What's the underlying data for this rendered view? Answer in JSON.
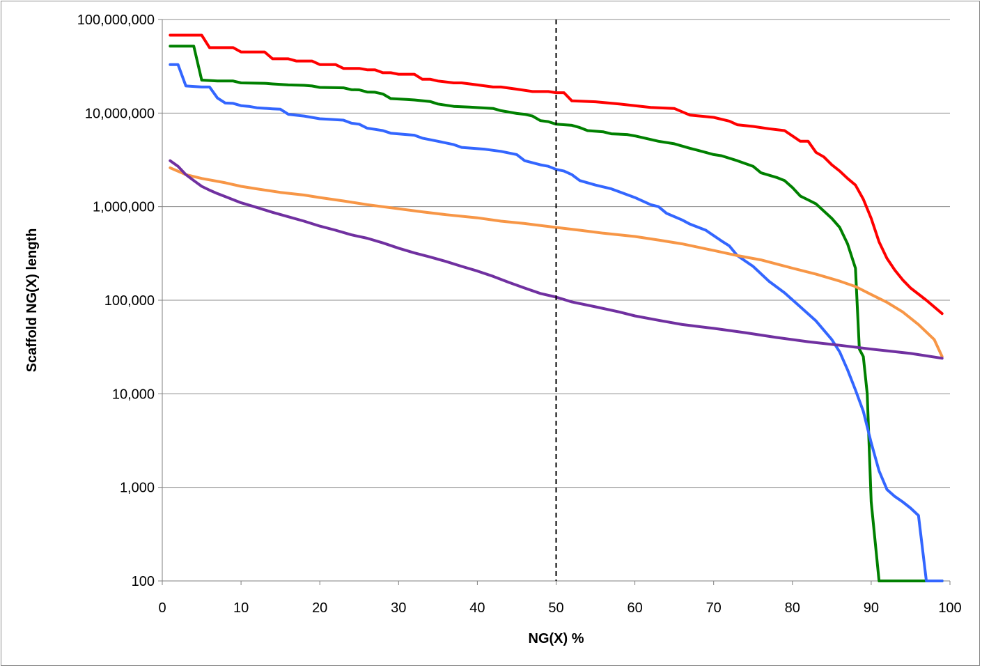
{
  "chart_data": {
    "type": "line",
    "title": "",
    "xlabel": "NG(X) %",
    "ylabel": "Scaffold NG(X) length",
    "xlim": [
      0,
      100
    ],
    "ylim": [
      100,
      100000000
    ],
    "yscale": "log",
    "grid": {
      "horizontal": true,
      "vertical": false
    },
    "legend": "none",
    "x_ticks": [
      "0",
      "10",
      "20",
      "30",
      "40",
      "50",
      "60",
      "70",
      "80",
      "90",
      "100"
    ],
    "y_ticks": [
      "100",
      "1,000",
      "10,000",
      "100,000",
      "1,000,000",
      "10,000,000",
      "100,000,000"
    ],
    "reference_line": {
      "x": 50,
      "style": "dashed",
      "color": "#000000"
    },
    "series": [
      {
        "color": "#ff0000",
        "points": [
          [
            1,
            68000000
          ],
          [
            5,
            68000000
          ],
          [
            6,
            50000000
          ],
          [
            9,
            50000000
          ],
          [
            10,
            45000000
          ],
          [
            13,
            45000000
          ],
          [
            14,
            38000000
          ],
          [
            16,
            38000000
          ],
          [
            17,
            36000000
          ],
          [
            19,
            36000000
          ],
          [
            20,
            33000000
          ],
          [
            22,
            33000000
          ],
          [
            23,
            30000000
          ],
          [
            25,
            30000000
          ],
          [
            26,
            29000000
          ],
          [
            27,
            29000000
          ],
          [
            28,
            27000000
          ],
          [
            29,
            27000000
          ],
          [
            30,
            26000000
          ],
          [
            32,
            26000000
          ],
          [
            33,
            23000000
          ],
          [
            34,
            23000000
          ],
          [
            35,
            22000000
          ],
          [
            37,
            21000000
          ],
          [
            38,
            21000000
          ],
          [
            40,
            20000000
          ],
          [
            42,
            19000000
          ],
          [
            43,
            19000000
          ],
          [
            45,
            18000000
          ],
          [
            47,
            17000000
          ],
          [
            49,
            17000000
          ],
          [
            50,
            16500000
          ],
          [
            51,
            16500000
          ],
          [
            52,
            13500000
          ],
          [
            55,
            13200000
          ],
          [
            58,
            12500000
          ],
          [
            60,
            12000000
          ],
          [
            62,
            11500000
          ],
          [
            65,
            11200000
          ],
          [
            67,
            9500000
          ],
          [
            70,
            9000000
          ],
          [
            72,
            8200000
          ],
          [
            73,
            7500000
          ],
          [
            75,
            7200000
          ],
          [
            77,
            6800000
          ],
          [
            79,
            6500000
          ],
          [
            81,
            5000000
          ],
          [
            82,
            5000000
          ],
          [
            83,
            3800000
          ],
          [
            84,
            3400000
          ],
          [
            85,
            2800000
          ],
          [
            86,
            2400000
          ],
          [
            87,
            2000000
          ],
          [
            88,
            1700000
          ],
          [
            89,
            1200000
          ],
          [
            90,
            750000
          ],
          [
            91,
            420000
          ],
          [
            92,
            280000
          ],
          [
            93,
            210000
          ],
          [
            94,
            165000
          ],
          [
            95,
            135000
          ],
          [
            97,
            100000
          ],
          [
            99,
            72000
          ]
        ]
      },
      {
        "color": "#008000",
        "points": [
          [
            1,
            52000000
          ],
          [
            4,
            52000000
          ],
          [
            5,
            22500000
          ],
          [
            7,
            22000000
          ],
          [
            9,
            22000000
          ],
          [
            10,
            21000000
          ],
          [
            13,
            20800000
          ],
          [
            14,
            20500000
          ],
          [
            16,
            20000000
          ],
          [
            18,
            19800000
          ],
          [
            19,
            19500000
          ],
          [
            20,
            18800000
          ],
          [
            23,
            18600000
          ],
          [
            24,
            17800000
          ],
          [
            25,
            17700000
          ],
          [
            26,
            16800000
          ],
          [
            27,
            16700000
          ],
          [
            28,
            16000000
          ],
          [
            29,
            14300000
          ],
          [
            31,
            14000000
          ],
          [
            32,
            13800000
          ],
          [
            34,
            13300000
          ],
          [
            35,
            12500000
          ],
          [
            37,
            11800000
          ],
          [
            39,
            11600000
          ],
          [
            42,
            11200000
          ],
          [
            43,
            10600000
          ],
          [
            45,
            9900000
          ],
          [
            46,
            9700000
          ],
          [
            47,
            9300000
          ],
          [
            48,
            8300000
          ],
          [
            49,
            8100000
          ],
          [
            50,
            7600000
          ],
          [
            52,
            7400000
          ],
          [
            53,
            7000000
          ],
          [
            54,
            6500000
          ],
          [
            56,
            6300000
          ],
          [
            57,
            6000000
          ],
          [
            59,
            5900000
          ],
          [
            60,
            5700000
          ],
          [
            63,
            5000000
          ],
          [
            65,
            4700000
          ],
          [
            67,
            4200000
          ],
          [
            68,
            4000000
          ],
          [
            70,
            3600000
          ],
          [
            71,
            3500000
          ],
          [
            73,
            3100000
          ],
          [
            75,
            2700000
          ],
          [
            76,
            2300000
          ],
          [
            78,
            2050000
          ],
          [
            79,
            1900000
          ],
          [
            80,
            1600000
          ],
          [
            81,
            1300000
          ],
          [
            82,
            1180000
          ],
          [
            83,
            1070000
          ],
          [
            85,
            750000
          ],
          [
            86,
            600000
          ],
          [
            87,
            400000
          ],
          [
            88,
            220000
          ],
          [
            88.5,
            30000
          ],
          [
            89,
            25000
          ],
          [
            89.5,
            10000
          ],
          [
            90,
            700
          ],
          [
            91,
            100
          ],
          [
            99,
            100
          ]
        ]
      },
      {
        "color": "#3366ff",
        "points": [
          [
            1,
            33000000
          ],
          [
            2,
            33000000
          ],
          [
            3,
            19500000
          ],
          [
            5,
            19000000
          ],
          [
            6,
            19000000
          ],
          [
            7,
            14500000
          ],
          [
            8,
            12800000
          ],
          [
            9,
            12700000
          ],
          [
            10,
            12000000
          ],
          [
            11,
            11800000
          ],
          [
            12,
            11400000
          ],
          [
            14,
            11100000
          ],
          [
            15,
            11000000
          ],
          [
            16,
            9700000
          ],
          [
            18,
            9300000
          ],
          [
            20,
            8700000
          ],
          [
            21,
            8600000
          ],
          [
            23,
            8400000
          ],
          [
            24,
            7800000
          ],
          [
            25,
            7600000
          ],
          [
            26,
            6900000
          ],
          [
            27,
            6700000
          ],
          [
            28,
            6500000
          ],
          [
            29,
            6100000
          ],
          [
            32,
            5800000
          ],
          [
            33,
            5400000
          ],
          [
            35,
            5000000
          ],
          [
            37,
            4600000
          ],
          [
            38,
            4300000
          ],
          [
            41,
            4100000
          ],
          [
            43,
            3900000
          ],
          [
            45,
            3600000
          ],
          [
            46,
            3100000
          ],
          [
            48,
            2800000
          ],
          [
            49,
            2700000
          ],
          [
            50,
            2500000
          ],
          [
            51,
            2400000
          ],
          [
            52,
            2200000
          ],
          [
            53,
            1900000
          ],
          [
            55,
            1700000
          ],
          [
            57,
            1550000
          ],
          [
            60,
            1250000
          ],
          [
            62,
            1050000
          ],
          [
            63,
            1000000
          ],
          [
            64,
            850000
          ],
          [
            66,
            720000
          ],
          [
            67,
            650000
          ],
          [
            69,
            560000
          ],
          [
            71,
            430000
          ],
          [
            72,
            380000
          ],
          [
            73,
            300000
          ],
          [
            75,
            230000
          ],
          [
            77,
            160000
          ],
          [
            79,
            120000
          ],
          [
            81,
            85000
          ],
          [
            83,
            60000
          ],
          [
            85,
            38000
          ],
          [
            86,
            28000
          ],
          [
            87,
            18000
          ],
          [
            88,
            11000
          ],
          [
            89,
            6500
          ],
          [
            90,
            3000
          ],
          [
            91,
            1500
          ],
          [
            92,
            950
          ],
          [
            93,
            800
          ],
          [
            94,
            700
          ],
          [
            95,
            600
          ],
          [
            96,
            500
          ],
          [
            97,
            100
          ],
          [
            99,
            100
          ]
        ]
      },
      {
        "color": "#f79646",
        "points": [
          [
            1,
            2600000
          ],
          [
            3,
            2200000
          ],
          [
            5,
            2000000
          ],
          [
            8,
            1800000
          ],
          [
            10,
            1650000
          ],
          [
            12,
            1550000
          ],
          [
            15,
            1420000
          ],
          [
            18,
            1330000
          ],
          [
            20,
            1250000
          ],
          [
            23,
            1150000
          ],
          [
            26,
            1050000
          ],
          [
            30,
            950000
          ],
          [
            33,
            880000
          ],
          [
            36,
            820000
          ],
          [
            40,
            760000
          ],
          [
            43,
            700000
          ],
          [
            46,
            660000
          ],
          [
            50,
            600000
          ],
          [
            53,
            560000
          ],
          [
            56,
            520000
          ],
          [
            60,
            480000
          ],
          [
            63,
            440000
          ],
          [
            66,
            400000
          ],
          [
            70,
            340000
          ],
          [
            73,
            300000
          ],
          [
            76,
            270000
          ],
          [
            80,
            220000
          ],
          [
            83,
            190000
          ],
          [
            86,
            160000
          ],
          [
            88,
            140000
          ],
          [
            90,
            115000
          ],
          [
            92,
            95000
          ],
          [
            94,
            75000
          ],
          [
            96,
            55000
          ],
          [
            98,
            38000
          ],
          [
            99,
            25000
          ]
        ]
      },
      {
        "color": "#7030a0",
        "points": [
          [
            1,
            3100000
          ],
          [
            2,
            2700000
          ],
          [
            3,
            2200000
          ],
          [
            4,
            1900000
          ],
          [
            5,
            1650000
          ],
          [
            6,
            1500000
          ],
          [
            7,
            1380000
          ],
          [
            8,
            1280000
          ],
          [
            10,
            1100000
          ],
          [
            12,
            980000
          ],
          [
            14,
            870000
          ],
          [
            16,
            780000
          ],
          [
            18,
            700000
          ],
          [
            20,
            620000
          ],
          [
            22,
            560000
          ],
          [
            24,
            500000
          ],
          [
            26,
            460000
          ],
          [
            28,
            410000
          ],
          [
            30,
            360000
          ],
          [
            32,
            320000
          ],
          [
            34,
            290000
          ],
          [
            36,
            260000
          ],
          [
            38,
            230000
          ],
          [
            40,
            205000
          ],
          [
            42,
            180000
          ],
          [
            44,
            155000
          ],
          [
            46,
            135000
          ],
          [
            48,
            118000
          ],
          [
            50,
            108000
          ],
          [
            52,
            96000
          ],
          [
            55,
            85000
          ],
          [
            58,
            75000
          ],
          [
            60,
            68000
          ],
          [
            63,
            61000
          ],
          [
            66,
            55000
          ],
          [
            70,
            50000
          ],
          [
            74,
            45000
          ],
          [
            78,
            40000
          ],
          [
            82,
            36000
          ],
          [
            86,
            33000
          ],
          [
            90,
            30000
          ],
          [
            95,
            27000
          ],
          [
            99,
            24000
          ]
        ]
      }
    ]
  }
}
